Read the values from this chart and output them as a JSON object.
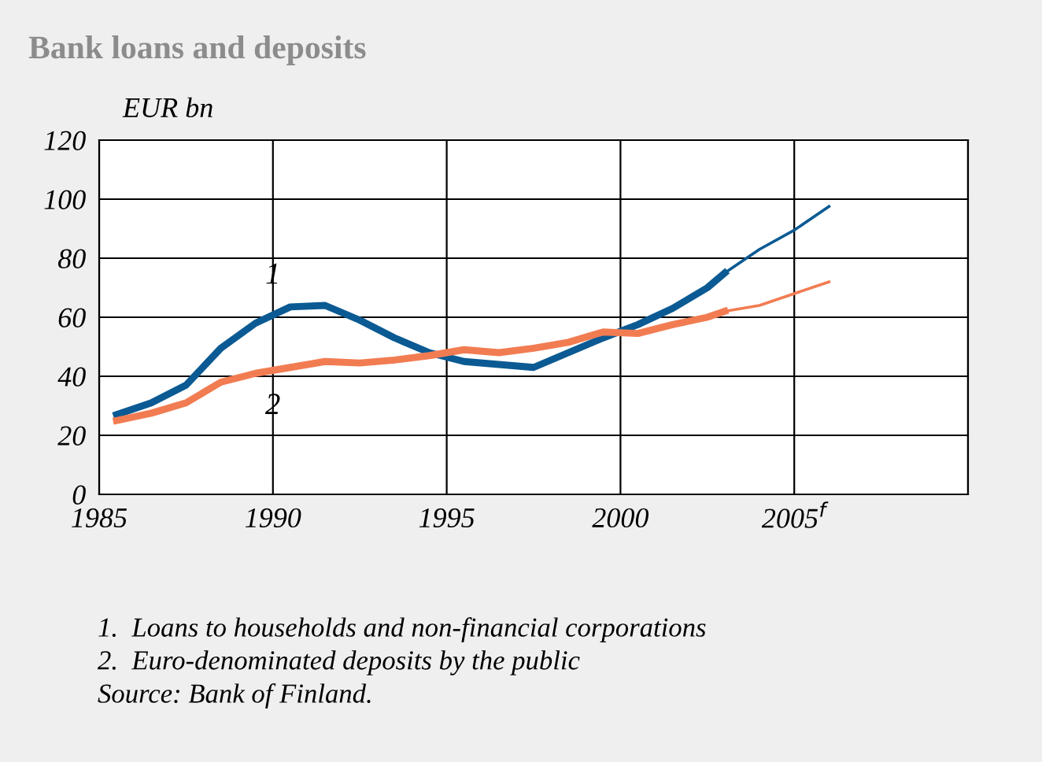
{
  "chart_data": {
    "type": "line",
    "title": "Bank loans and deposits",
    "ylabel": "EUR bn",
    "xlim": [
      1985,
      2010
    ],
    "xticks": [
      1985,
      1990,
      1995,
      2000,
      {
        "value": 2005,
        "label": "2005$^{f}$"
      },
      {
        "value": 2010,
        "label": null
      }
    ],
    "ylim": [
      0,
      120
    ],
    "yticks": [
      0,
      20,
      40,
      60,
      80,
      100,
      120
    ],
    "grid": true,
    "legend": false,
    "marker": "none",
    "line_style": "solid",
    "series": [
      {
        "name": "1",
        "color": "#0b5a93",
        "x": [
          1985.5,
          1986.5,
          1987.5,
          1988.5,
          1989.5,
          1990.5,
          1991.5,
          1992.5,
          1993.5,
          1994.5,
          1995.5,
          1996.5,
          1997.5,
          1998.5,
          1999.5,
          2000.5,
          2001.5,
          2002.5,
          2003
        ],
        "values": [
          27,
          31,
          37,
          49.5,
          58,
          63.5,
          64,
          59,
          53,
          48,
          45,
          44,
          43,
          48,
          53,
          57.5,
          63,
          70,
          75
        ]
      },
      {
        "color": "#0b5a93",
        "x": [
          2003,
          2004,
          2005,
          2006
        ],
        "values": [
          75,
          83,
          89.5,
          97.5
        ]
      },
      {
        "name": "2",
        "color": "#f27c52",
        "x": [
          1985.5,
          1986.5,
          1987.5,
          1988.5,
          1989.5,
          1990.5,
          1991.5,
          1992.5,
          1993.5,
          1994.5,
          1995.5,
          1996.5,
          1997.5,
          1998.5,
          1999.5,
          2000.5,
          2001.5,
          2002.5,
          2003
        ],
        "values": [
          25,
          27.5,
          31,
          38,
          41,
          43,
          45,
          44.5,
          45.5,
          47,
          49,
          48,
          49.5,
          51.5,
          55,
          54.5,
          57.5,
          60,
          62
        ]
      },
      {
        "color": "#f27c52",
        "x": [
          2003,
          2004,
          2005,
          2006
        ],
        "values": [
          62,
          64,
          68,
          72
        ]
      }
    ],
    "annotations": [
      "1.  Loans to households and non-financial corporations",
      "2.  Euro-denominated deposits by the public",
      "Source: Bank of Finland."
    ]
  }
}
